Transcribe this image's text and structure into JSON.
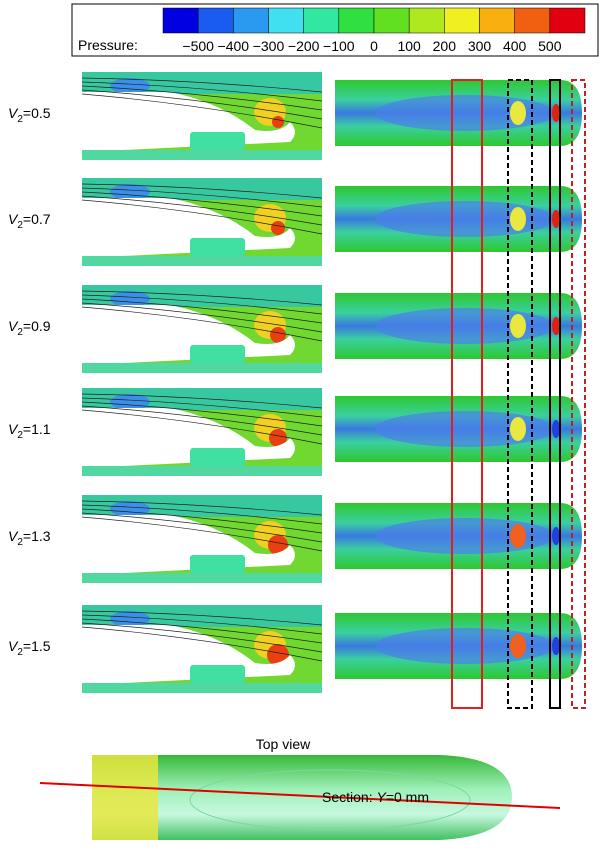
{
  "colorbar": {
    "label": "Pressure:",
    "colors": [
      "#0000e0",
      "#1a5cf0",
      "#2a9af0",
      "#40e0f0",
      "#30e8a0",
      "#30e040",
      "#60e020",
      "#b0e820",
      "#f0f020",
      "#f8b010",
      "#f06010",
      "#e00010"
    ],
    "ticks": [
      "−500",
      "−400",
      "−300",
      "−200",
      "−100",
      "0",
      "100",
      "200",
      "300",
      "400",
      "500"
    ]
  },
  "rows": [
    {
      "var": "V",
      "sub": "2",
      "rest": "=0.5"
    },
    {
      "var": "V",
      "sub": "2",
      "rest": "=0.7"
    },
    {
      "var": "V",
      "sub": "2",
      "rest": "=0.9"
    },
    {
      "var": "V",
      "sub": "2",
      "rest": "=1.1"
    },
    {
      "var": "V",
      "sub": "2",
      "rest": "=1.3"
    },
    {
      "var": "V",
      "sub": "2",
      "rest": "=1.5"
    }
  ],
  "top_view": {
    "title": "Top view",
    "section_prefix": "Section: ",
    "section_var": "Y",
    "section_rest": "=0 mm"
  }
}
